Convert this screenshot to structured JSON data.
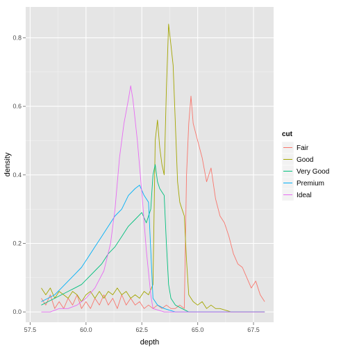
{
  "chart_data": {
    "type": "line",
    "xlabel": "depth",
    "ylabel": "density",
    "xlim": [
      57.3,
      68.4
    ],
    "ylim": [
      -0.03,
      0.89
    ],
    "x_ticks": [
      57.5,
      60.0,
      62.5,
      65.0,
      67.5
    ],
    "x_tick_labels": [
      "57.5",
      "60.0",
      "62.5",
      "65.0",
      "67.5"
    ],
    "y_ticks": [
      0.0,
      0.2,
      0.4,
      0.6,
      0.8
    ],
    "y_tick_labels": [
      "0.0",
      "0.2",
      "0.4",
      "0.6",
      "0.8"
    ],
    "grid": true,
    "legend": {
      "title": "cut",
      "position": "right"
    },
    "series": [
      {
        "name": "Fair",
        "color": "#F8766D",
        "points": [
          [
            58.0,
            0.04
          ],
          [
            58.2,
            0.02
          ],
          [
            58.4,
            0.05
          ],
          [
            58.6,
            0.01
          ],
          [
            58.8,
            0.03
          ],
          [
            59.0,
            0.01
          ],
          [
            59.2,
            0.04
          ],
          [
            59.4,
            0.02
          ],
          [
            59.6,
            0.05
          ],
          [
            59.8,
            0.01
          ],
          [
            60.0,
            0.03
          ],
          [
            60.2,
            0.01
          ],
          [
            60.4,
            0.04
          ],
          [
            60.6,
            0.02
          ],
          [
            60.8,
            0.05
          ],
          [
            61.0,
            0.02
          ],
          [
            61.2,
            0.04
          ],
          [
            61.4,
            0.01
          ],
          [
            61.6,
            0.05
          ],
          [
            61.8,
            0.02
          ],
          [
            62.0,
            0.04
          ],
          [
            62.2,
            0.02
          ],
          [
            62.4,
            0.03
          ],
          [
            62.6,
            0.01
          ],
          [
            62.8,
            0.02
          ],
          [
            63.0,
            0.01
          ],
          [
            63.2,
            0.02
          ],
          [
            63.4,
            0.01
          ],
          [
            63.6,
            0.02
          ],
          [
            63.8,
            0.01
          ],
          [
            64.0,
            0.01
          ],
          [
            64.2,
            0.02
          ],
          [
            64.4,
            0.01
          ],
          [
            64.5,
            0.4
          ],
          [
            64.6,
            0.55
          ],
          [
            64.7,
            0.63
          ],
          [
            64.8,
            0.55
          ],
          [
            65.0,
            0.5
          ],
          [
            65.2,
            0.45
          ],
          [
            65.4,
            0.38
          ],
          [
            65.6,
            0.42
          ],
          [
            65.8,
            0.33
          ],
          [
            66.0,
            0.28
          ],
          [
            66.2,
            0.26
          ],
          [
            66.4,
            0.22
          ],
          [
            66.6,
            0.17
          ],
          [
            66.8,
            0.14
          ],
          [
            67.0,
            0.13
          ],
          [
            67.2,
            0.1
          ],
          [
            67.4,
            0.07
          ],
          [
            67.6,
            0.09
          ],
          [
            67.8,
            0.05
          ],
          [
            68.0,
            0.03
          ]
        ]
      },
      {
        "name": "Good",
        "color": "#A3A500",
        "points": [
          [
            58.0,
            0.07
          ],
          [
            58.2,
            0.05
          ],
          [
            58.4,
            0.07
          ],
          [
            58.6,
            0.04
          ],
          [
            58.8,
            0.06
          ],
          [
            59.0,
            0.05
          ],
          [
            59.2,
            0.04
          ],
          [
            59.4,
            0.06
          ],
          [
            59.6,
            0.05
          ],
          [
            59.8,
            0.03
          ],
          [
            60.0,
            0.05
          ],
          [
            60.2,
            0.06
          ],
          [
            60.4,
            0.04
          ],
          [
            60.6,
            0.06
          ],
          [
            60.8,
            0.04
          ],
          [
            61.0,
            0.06
          ],
          [
            61.2,
            0.05
          ],
          [
            61.4,
            0.07
          ],
          [
            61.6,
            0.05
          ],
          [
            61.8,
            0.06
          ],
          [
            62.0,
            0.04
          ],
          [
            62.2,
            0.05
          ],
          [
            62.4,
            0.04
          ],
          [
            62.6,
            0.06
          ],
          [
            62.8,
            0.05
          ],
          [
            63.0,
            0.08
          ],
          [
            63.1,
            0.5
          ],
          [
            63.2,
            0.56
          ],
          [
            63.3,
            0.48
          ],
          [
            63.4,
            0.43
          ],
          [
            63.5,
            0.4
          ],
          [
            63.6,
            0.65
          ],
          [
            63.7,
            0.84
          ],
          [
            63.8,
            0.78
          ],
          [
            63.9,
            0.72
          ],
          [
            64.0,
            0.55
          ],
          [
            64.1,
            0.38
          ],
          [
            64.2,
            0.32
          ],
          [
            64.3,
            0.3
          ],
          [
            64.4,
            0.28
          ],
          [
            64.5,
            0.15
          ],
          [
            64.6,
            0.05
          ],
          [
            64.8,
            0.03
          ],
          [
            65.0,
            0.02
          ],
          [
            65.2,
            0.03
          ],
          [
            65.4,
            0.01
          ],
          [
            65.6,
            0.02
          ],
          [
            65.8,
            0.01
          ],
          [
            66.0,
            0.01
          ],
          [
            66.5,
            0.0
          ],
          [
            67.0,
            0.0
          ],
          [
            67.5,
            0.0
          ],
          [
            68.0,
            0.0
          ]
        ]
      },
      {
        "name": "Very Good",
        "color": "#00BF7D",
        "points": [
          [
            58.0,
            0.02
          ],
          [
            58.3,
            0.03
          ],
          [
            58.6,
            0.04
          ],
          [
            58.9,
            0.05
          ],
          [
            59.2,
            0.06
          ],
          [
            59.5,
            0.07
          ],
          [
            59.8,
            0.08
          ],
          [
            60.1,
            0.1
          ],
          [
            60.4,
            0.12
          ],
          [
            60.7,
            0.14
          ],
          [
            61.0,
            0.17
          ],
          [
            61.3,
            0.19
          ],
          [
            61.6,
            0.22
          ],
          [
            61.9,
            0.25
          ],
          [
            62.2,
            0.27
          ],
          [
            62.5,
            0.29
          ],
          [
            62.7,
            0.26
          ],
          [
            62.9,
            0.3
          ],
          [
            63.0,
            0.4
          ],
          [
            63.1,
            0.43
          ],
          [
            63.2,
            0.38
          ],
          [
            63.3,
            0.36
          ],
          [
            63.4,
            0.35
          ],
          [
            63.5,
            0.34
          ],
          [
            63.6,
            0.2
          ],
          [
            63.7,
            0.08
          ],
          [
            63.8,
            0.04
          ],
          [
            64.0,
            0.02
          ],
          [
            64.3,
            0.01
          ],
          [
            64.6,
            0.0
          ],
          [
            65.0,
            0.0
          ],
          [
            65.5,
            0.0
          ],
          [
            66.0,
            0.0
          ],
          [
            67.0,
            0.0
          ],
          [
            68.0,
            0.0
          ]
        ]
      },
      {
        "name": "Premium",
        "color": "#00B0F6",
        "points": [
          [
            58.0,
            0.03
          ],
          [
            58.3,
            0.04
          ],
          [
            58.6,
            0.05
          ],
          [
            58.9,
            0.07
          ],
          [
            59.2,
            0.09
          ],
          [
            59.5,
            0.11
          ],
          [
            59.8,
            0.13
          ],
          [
            60.1,
            0.16
          ],
          [
            60.4,
            0.19
          ],
          [
            60.7,
            0.22
          ],
          [
            61.0,
            0.25
          ],
          [
            61.3,
            0.28
          ],
          [
            61.6,
            0.3
          ],
          [
            61.9,
            0.34
          ],
          [
            62.2,
            0.36
          ],
          [
            62.4,
            0.37
          ],
          [
            62.6,
            0.34
          ],
          [
            62.8,
            0.32
          ],
          [
            62.9,
            0.18
          ],
          [
            63.0,
            0.04
          ],
          [
            63.2,
            0.02
          ],
          [
            63.5,
            0.01
          ],
          [
            64.0,
            0.0
          ],
          [
            65.0,
            0.0
          ],
          [
            66.0,
            0.0
          ],
          [
            67.0,
            0.0
          ],
          [
            68.0,
            0.0
          ]
        ]
      },
      {
        "name": "Ideal",
        "color": "#E76BF3",
        "points": [
          [
            58.0,
            0.0
          ],
          [
            58.4,
            0.0
          ],
          [
            58.8,
            0.01
          ],
          [
            59.2,
            0.01
          ],
          [
            59.6,
            0.02
          ],
          [
            60.0,
            0.04
          ],
          [
            60.4,
            0.07
          ],
          [
            60.8,
            0.12
          ],
          [
            61.1,
            0.2
          ],
          [
            61.3,
            0.3
          ],
          [
            61.5,
            0.45
          ],
          [
            61.7,
            0.55
          ],
          [
            61.9,
            0.62
          ],
          [
            62.0,
            0.66
          ],
          [
            62.1,
            0.62
          ],
          [
            62.3,
            0.5
          ],
          [
            62.5,
            0.35
          ],
          [
            62.7,
            0.18
          ],
          [
            62.9,
            0.05
          ],
          [
            63.0,
            0.01
          ],
          [
            63.5,
            0.0
          ],
          [
            64.0,
            0.0
          ],
          [
            65.0,
            0.0
          ],
          [
            66.0,
            0.0
          ],
          [
            67.0,
            0.0
          ],
          [
            68.0,
            0.0
          ]
        ]
      }
    ]
  }
}
